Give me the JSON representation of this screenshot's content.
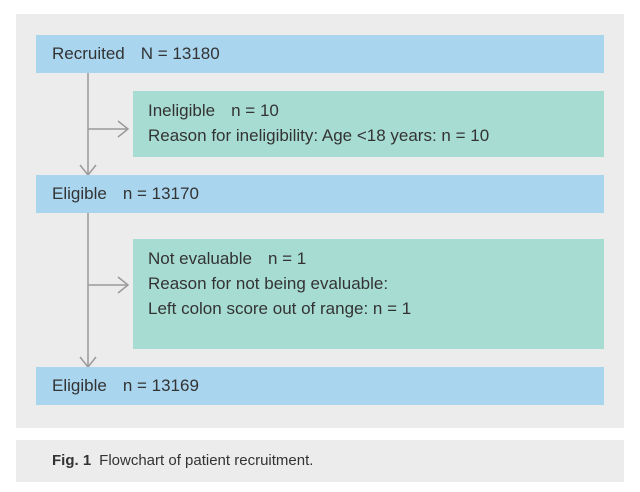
{
  "nodes": [
    {
      "parts": [
        "Recruited",
        "N = 13180"
      ]
    },
    {
      "lines": [
        [
          "Ineligible",
          "n = 10"
        ],
        [
          "Reason for ineligibility: Age <18 years: n = 10"
        ]
      ]
    },
    {
      "parts": [
        "Eligible",
        "n = 13170"
      ]
    },
    {
      "lines": [
        [
          "Not evaluable",
          "n = 1"
        ],
        [
          "Reason for not being evaluable:"
        ],
        [
          "Left colon score out of range: n = 1"
        ]
      ]
    },
    {
      "parts": [
        "Eligible",
        "n = 13169"
      ]
    }
  ],
  "caption": {
    "label": "Fig. 1",
    "text": "Flowchart of patient recruitment."
  }
}
